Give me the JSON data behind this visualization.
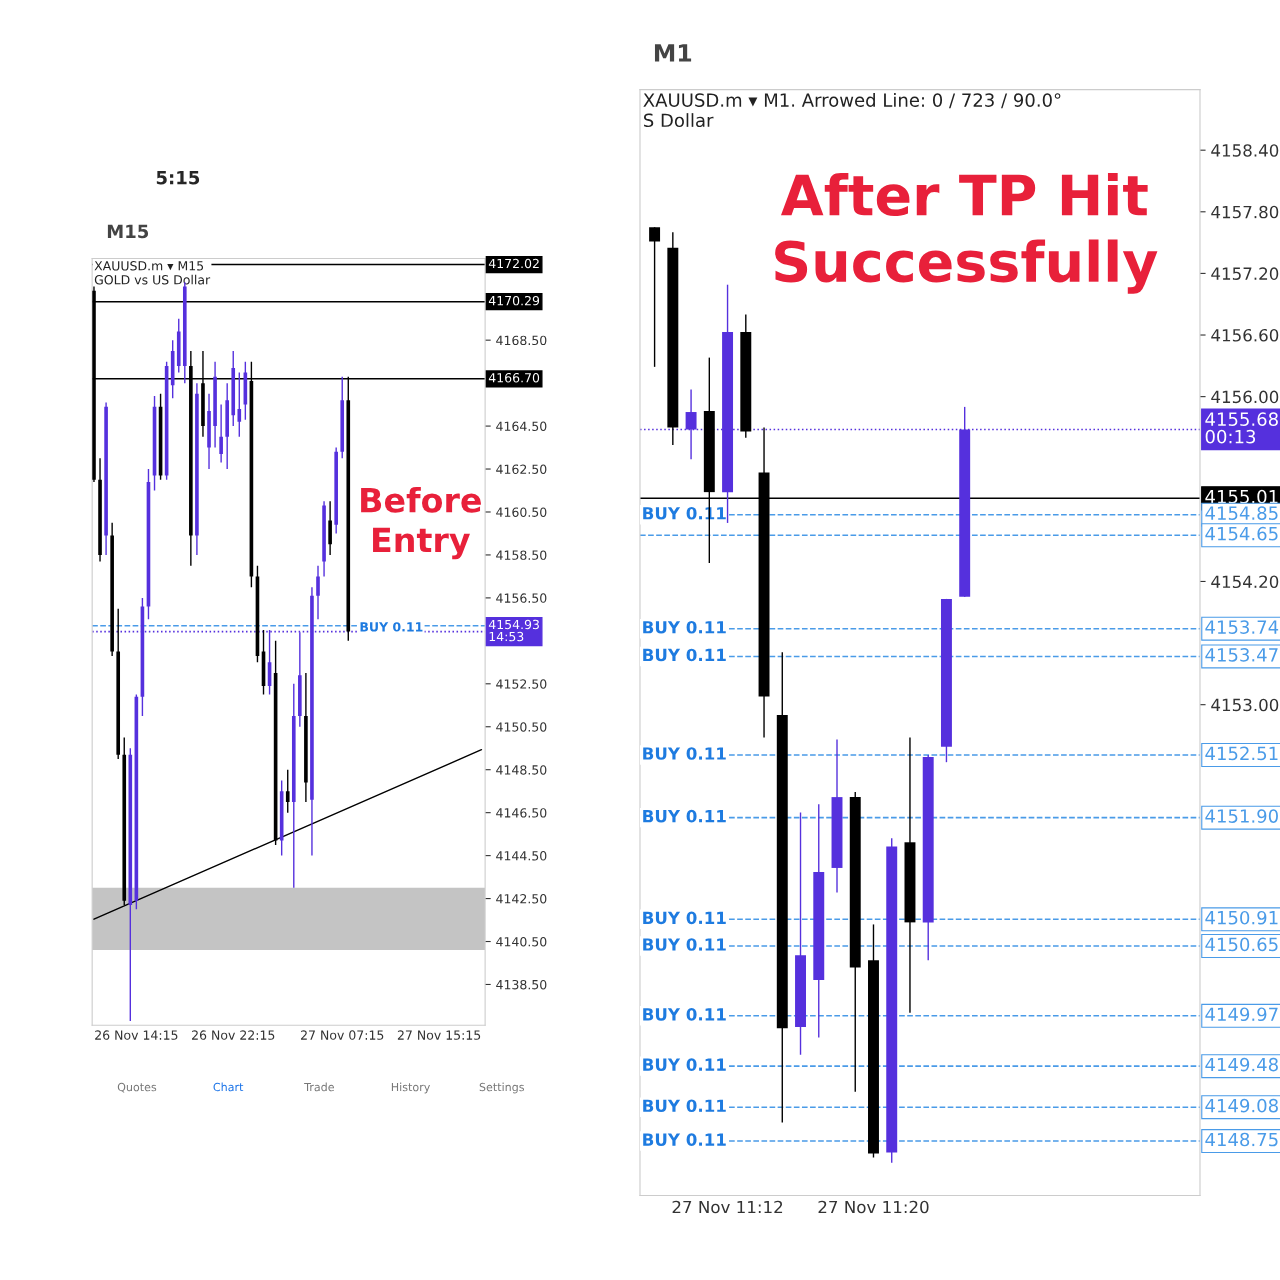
{
  "chart_data": [
    {
      "type": "candlestick",
      "title": "M15",
      "subtitle": "XAUUSD.m ▾ M15\nGOLD vs US Dollar",
      "annotations": [
        "Before Entry",
        "5:15",
        "Quotes",
        "Chart",
        "Trade",
        "History",
        "Settings",
        {
          "text": "BUY 0.11",
          "y": 4155.1
        }
      ],
      "categories": [
        null,
        null,
        null,
        null,
        null,
        null,
        null,
        "26 Nov 14:15",
        null,
        null,
        null,
        null,
        null,
        null,
        null,
        null,
        null,
        null,
        null,
        null,
        null,
        null,
        null,
        "26 Nov 22:15",
        null,
        null,
        null,
        null,
        null,
        null,
        null,
        null,
        null,
        null,
        null,
        null,
        null,
        null,
        null,
        null,
        null,
        "27 Nov 07:15",
        null,
        null,
        null,
        null,
        null,
        null,
        null,
        null,
        null,
        null,
        null,
        null,
        null,
        null,
        null,
        "27 Nov 15:15",
        null,
        null,
        null,
        null,
        null,
        null,
        null
      ],
      "ohlc": [
        [
          4170.8,
          4171.0,
          4161.9,
          4162.0
        ],
        [
          4162.0,
          4163.0,
          4158.2,
          4158.5
        ],
        [
          4159.4,
          4165.6,
          4158.5,
          4165.4
        ],
        [
          4159.4,
          4160.0,
          4153.8,
          4154.0
        ],
        [
          4154.0,
          4156.0,
          4149.0,
          4149.2
        ],
        [
          4149.2,
          4150.0,
          4142.2,
          4142.4
        ],
        [
          4142.2,
          4149.5,
          4136.8,
          4149.2
        ],
        [
          4142.4,
          4152.0,
          4142.0,
          4151.9
        ],
        [
          4151.9,
          4156.5,
          4151.0,
          4156.1
        ],
        [
          4156.1,
          4162.5,
          4155.5,
          4161.9
        ],
        [
          4162.2,
          4165.9,
          4161.5,
          4165.4
        ],
        [
          4165.4,
          4166.0,
          4162.0,
          4162.2
        ],
        [
          4162.2,
          4167.5,
          4162.0,
          4167.3
        ],
        [
          4166.4,
          4168.5,
          4165.8,
          4168.0
        ],
        [
          4167.3,
          4169.5,
          4167.0,
          4168.9
        ],
        [
          4167.3,
          4171.2,
          4166.5,
          4171.0
        ],
        [
          4167.3,
          4168.0,
          4158.0,
          4159.4
        ],
        [
          4159.4,
          4166.5,
          4158.5,
          4166.0
        ],
        [
          4166.5,
          4168.0,
          4164.0,
          4164.5
        ],
        [
          4163.5,
          4166.0,
          4162.5,
          4165.2
        ],
        [
          4164.5,
          4167.5,
          4163.5,
          4166.8
        ],
        [
          4163.2,
          4165.5,
          4162.8,
          4164.0
        ],
        [
          4164.0,
          4166.5,
          4162.5,
          4165.7
        ],
        [
          4165.0,
          4168.0,
          4164.5,
          4167.2
        ],
        [
          4164.7,
          4167.0,
          4164.0,
          4165.3
        ],
        [
          4165.5,
          4167.5,
          4164.8,
          4167.0
        ],
        [
          4166.6,
          4167.5,
          4157.0,
          4157.5
        ],
        [
          4157.5,
          4158.0,
          4153.5,
          4153.8
        ],
        [
          4154.0,
          4155.0,
          4152.0,
          4152.4
        ],
        [
          4152.4,
          4155.0,
          4152.0,
          4153.5
        ],
        [
          4153.0,
          4154.5,
          4145.0,
          4145.2
        ],
        [
          4145.2,
          4148.0,
          4144.5,
          4147.5
        ],
        [
          4147.5,
          4148.5,
          4146.5,
          4147.0
        ],
        [
          4147.0,
          4152.5,
          4143.0,
          4151.0
        ],
        [
          4151.0,
          4154.9,
          4150.5,
          4152.9
        ],
        [
          4151.0,
          4153.0,
          4147.0,
          4147.9
        ],
        [
          4147.1,
          4157.0,
          4144.5,
          4156.6
        ],
        [
          4156.6,
          4158.0,
          4155.5,
          4157.5
        ],
        [
          4158.2,
          4161.0,
          4157.5,
          4160.8
        ],
        [
          4160.1,
          4161.0,
          4158.5,
          4159.0
        ],
        [
          4159.9,
          4163.5,
          4159.5,
          4163.3
        ],
        [
          4163.3,
          4166.8,
          4163.0,
          4165.7
        ],
        [
          4165.7,
          4166.8,
          4154.5,
          4154.93
        ],
        null,
        null,
        null,
        null,
        null,
        null,
        null,
        null,
        null,
        null,
        null,
        null,
        null,
        null,
        null,
        null,
        null,
        null,
        null,
        null,
        null,
        null
      ],
      "colors": [
        "#000000",
        "#000000",
        "#5530dd",
        "#000000",
        "#000000",
        "#000000",
        "#5530dd",
        "#5530dd",
        "#5530dd",
        "#5530dd",
        "#5530dd",
        "#000000",
        "#5530dd",
        "#5530dd",
        "#5530dd",
        "#5530dd",
        "#000000",
        "#5530dd",
        "#000000",
        "#5530dd",
        "#5530dd",
        "#5530dd",
        "#5530dd",
        "#5530dd",
        "#5530dd",
        "#5530dd",
        "#000000",
        "#000000",
        "#000000",
        "#5530dd",
        "#000000",
        "#5530dd",
        "#000000",
        "#5530dd",
        "#5530dd",
        "#000000",
        "#5530dd",
        "#5530dd",
        "#5530dd",
        "#000000",
        "#5530dd",
        "#5530dd",
        "#000000",
        null,
        null,
        null,
        null,
        null,
        null,
        null,
        null,
        null,
        null,
        null,
        null,
        null,
        null,
        null,
        null,
        null,
        null,
        null,
        null,
        null,
        null
      ],
      "series": [
        {
          "type": "line",
          "values": [
            4141.54,
            null,
            null,
            null,
            null,
            null,
            null,
            null,
            null,
            null,
            null,
            null,
            null,
            null,
            null,
            null,
            null,
            null,
            null,
            null,
            null,
            null,
            null,
            null,
            null,
            null,
            null,
            null,
            null,
            null,
            null,
            null,
            null,
            null,
            null,
            null,
            null,
            null,
            null,
            null,
            null,
            null,
            null,
            null,
            null,
            null,
            null,
            null,
            null,
            null,
            null,
            null,
            null,
            null,
            null,
            null,
            null,
            null,
            null,
            null,
            null,
            null,
            null,
            null,
            4149.43
          ],
          "color": "#000000"
        }
      ],
      "ylim": [
        4136.6,
        4172.3
      ],
      "yticks": [
        {
          "value": 4138.5,
          "label": "4138.50"
        },
        {
          "value": 4140.5,
          "label": "4140.50"
        },
        {
          "value": 4142.5,
          "label": "4142.50"
        },
        {
          "value": 4144.5,
          "label": "4144.50"
        },
        {
          "value": 4146.5,
          "label": "4146.50"
        },
        {
          "value": 4148.5,
          "label": "4148.50"
        },
        {
          "value": 4150.5,
          "label": "4150.50"
        },
        {
          "value": 4152.5,
          "label": "4152.50"
        },
        {
          "value": 4156.5,
          "label": "4156.50"
        },
        {
          "value": 4158.5,
          "label": "4158.50"
        },
        {
          "value": 4160.5,
          "label": "4160.50"
        },
        {
          "value": 4162.5,
          "label": "4162.50"
        },
        {
          "value": 4164.5,
          "label": "4164.50"
        },
        {
          "value": 4168.5,
          "label": "4168.50"
        }
      ],
      "ref_lines": [
        {
          "axis": "y",
          "value": 4172.02,
          "label": "4172.02",
          "color": "#000000",
          "line_style": "solid"
        },
        {
          "axis": "y",
          "value": 4170.29,
          "label": "4170.29",
          "color": "#000000",
          "line_style": "solid"
        },
        {
          "axis": "y",
          "value": 4166.7,
          "label": "4166.70",
          "color": "#000000",
          "line_style": "solid"
        },
        {
          "axis": "y",
          "value": 4154.93,
          "label": "4154.93\n14:53",
          "color": "#5530dd",
          "line_style": "dotted"
        },
        {
          "axis": "y",
          "value": 4155.2,
          "label": null,
          "color": "#4a9be8",
          "line_style": "dashed"
        }
      ],
      "bands": [
        {
          "axis": "y",
          "from": 4140.1,
          "to": 4143.0,
          "label": null,
          "color": "#c4c4c4"
        }
      ]
    },
    {
      "type": "candlestick",
      "title": "M1",
      "subtitle": "XAUUSD.m ▾ M1. Arrowed Line: 0 / 723 / 90.0°\nS Dollar",
      "annotations": [
        "After TP Hit\nSuccessfully",
        {
          "text": "BUY 0.11",
          "y": 4154.85
        },
        {
          "text": "BUY 0.11",
          "y": 4153.74
        },
        {
          "text": "BUY 0.11",
          "y": 4153.47
        },
        {
          "text": "BUY 0.11",
          "y": 4152.51
        },
        {
          "text": "BUY 0.11",
          "y": 4151.9
        },
        {
          "text": "BUY 0.11",
          "y": 4150.91
        },
        {
          "text": "BUY 0.11",
          "y": 4150.65
        },
        {
          "text": "BUY 0.11",
          "y": 4149.97
        },
        {
          "text": "BUY 0.11",
          "y": 4149.48
        },
        {
          "text": "BUY 0.11",
          "y": 4149.08
        },
        {
          "text": "BUY 0.11",
          "y": 4148.75
        }
      ],
      "categories": [
        null,
        null,
        null,
        null,
        "27 Nov 11:12",
        null,
        null,
        null,
        null,
        null,
        null,
        null,
        "27 Nov 11:20",
        null,
        null,
        null,
        null,
        null,
        null,
        null,
        null,
        null,
        null,
        null,
        null,
        null,
        null,
        null,
        null,
        null
      ],
      "ohlc": [
        [
          4157.65,
          4157.65,
          4156.29,
          4157.51
        ],
        [
          4157.45,
          4157.6,
          4155.53,
          4155.7
        ],
        [
          4155.68,
          4156.07,
          4155.39,
          4155.85
        ],
        [
          4155.86,
          4156.38,
          4154.38,
          4155.07
        ],
        [
          4155.07,
          4157.09,
          4154.77,
          4156.63
        ],
        [
          4156.63,
          4156.8,
          4155.6,
          4155.66
        ],
        [
          4155.26,
          4155.7,
          4152.68,
          4153.08
        ],
        [
          4152.9,
          4153.51,
          4148.93,
          4149.85
        ],
        [
          4149.86,
          4151.95,
          4149.59,
          4150.56
        ],
        [
          4150.32,
          4152.03,
          4149.76,
          4151.37
        ],
        [
          4151.41,
          4152.66,
          4151.17,
          4152.1
        ],
        [
          4152.1,
          4152.15,
          4149.23,
          4150.44
        ],
        [
          4150.51,
          4150.86,
          4148.59,
          4148.63
        ],
        [
          4148.64,
          4151.7,
          4148.54,
          4151.62
        ],
        [
          4151.66,
          4152.68,
          4150.0,
          4150.88
        ],
        [
          4150.88,
          4152.51,
          4150.51,
          4152.49
        ],
        [
          4152.59,
          4154.03,
          4152.44,
          4154.03
        ],
        [
          4154.05,
          4155.9,
          4154.05,
          4155.68
        ],
        null,
        null,
        null,
        null,
        null,
        null,
        null,
        null,
        null,
        null,
        null,
        null
      ],
      "colors": [
        "#000000",
        "#000000",
        "#5530dd",
        "#000000",
        "#5530dd",
        "#000000",
        "#000000",
        "#000000",
        "#5530dd",
        "#5530dd",
        "#5530dd",
        "#000000",
        "#000000",
        "#5530dd",
        "#000000",
        "#5530dd",
        "#5530dd",
        "#5530dd",
        null,
        null,
        null,
        null,
        null,
        null,
        null,
        null,
        null,
        null,
        null,
        null
      ],
      "ylim": [
        4148.22,
        4158.99
      ],
      "yticks": [
        {
          "value": 4153.0,
          "label": "4153.00"
        },
        {
          "value": 4154.2,
          "label": "4154.20"
        },
        {
          "value": 4156.0,
          "label": "4156.00"
        },
        {
          "value": 4156.6,
          "label": "4156.60"
        },
        {
          "value": 4157.2,
          "label": "4157.20"
        },
        {
          "value": 4157.8,
          "label": "4157.80"
        },
        {
          "value": 4158.4,
          "label": "4158.40"
        }
      ],
      "ref_lines": [
        {
          "axis": "y",
          "value": 4155.68,
          "label": "4155.68\n00:13",
          "color": "#5530dd",
          "line_style": "dotted"
        },
        {
          "axis": "y",
          "value": 4155.01,
          "label": "4155.01",
          "color": "#000000",
          "line_style": "solid"
        },
        {
          "axis": "y",
          "value": 4154.85,
          "label": "4154.85",
          "color": "#4a9be8",
          "line_style": "dashed"
        },
        {
          "axis": "y",
          "value": 4154.65,
          "label": "4154.65",
          "color": "#4a9be8",
          "line_style": "dashed"
        },
        {
          "axis": "y",
          "value": 4153.74,
          "label": "4153.74",
          "color": "#4a9be8",
          "line_style": "dashed"
        },
        {
          "axis": "y",
          "value": 4153.47,
          "label": "4153.47",
          "color": "#4a9be8",
          "line_style": "dashed"
        },
        {
          "axis": "y",
          "value": 4152.51,
          "label": "4152.51",
          "color": "#4a9be8",
          "line_style": "dashed"
        },
        {
          "axis": "y",
          "value": 4151.9,
          "label": "4151.90",
          "color": "#4a9be8",
          "line_style": "dashed"
        },
        {
          "axis": "y",
          "value": 4150.91,
          "label": "4150.91",
          "color": "#4a9be8",
          "line_style": "dashed"
        },
        {
          "axis": "y",
          "value": 4150.65,
          "label": "4150.65",
          "color": "#4a9be8",
          "line_style": "dashed"
        },
        {
          "axis": "y",
          "value": 4149.97,
          "label": "4149.97",
          "color": "#4a9be8",
          "line_style": "dashed"
        },
        {
          "axis": "y",
          "value": 4149.48,
          "label": "4149.48",
          "color": "#4a9be8",
          "line_style": "dashed"
        },
        {
          "axis": "y",
          "value": 4149.08,
          "label": "4149.08",
          "color": "#4a9be8",
          "line_style": "dashed"
        },
        {
          "axis": "y",
          "value": 4148.75,
          "label": "4148.75",
          "color": "#4a9be8",
          "line_style": "dashed"
        }
      ]
    }
  ]
}
